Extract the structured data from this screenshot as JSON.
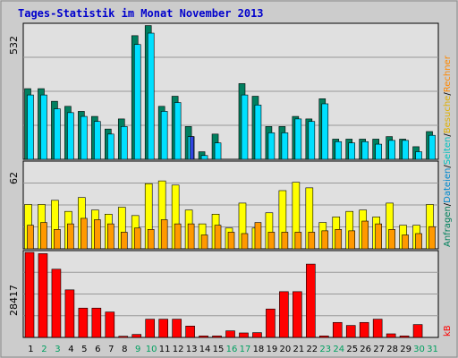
{
  "title": "Tages-Statistik im Monat November 2013",
  "colors": {
    "background": "#CCCCCC",
    "panel": "#E0E0E0",
    "title": "#0000CC",
    "hits": "#007F5F",
    "files": "#00E0FF",
    "pages": "#3344E0",
    "visits": "#FFFF00",
    "sites": "#FF9900",
    "kbytes": "#FF0000",
    "weekend_day": "#00A060",
    "weekday": "#000000"
  },
  "right_labels": {
    "top": [
      {
        "text": "Anfragen",
        "color": "#00805C"
      },
      {
        "text": "/",
        "color": "#000000"
      },
      {
        "text": "Dateien",
        "color": "#0088CC"
      },
      {
        "text": "/",
        "color": "#000000"
      },
      {
        "text": "Seiten",
        "color": "#00C0C0"
      },
      {
        "text": "/",
        "color": "#000000"
      },
      {
        "text": "Besuche",
        "color": "#E0B000"
      },
      {
        "text": "/",
        "color": "#000000"
      },
      {
        "text": "Rechner",
        "color": "#FF8800"
      }
    ],
    "bottom": [
      {
        "text": "kB",
        "color": "#FF0000"
      }
    ]
  },
  "chart_data": [
    {
      "type": "bar",
      "panel": "top",
      "ymax_label": "532",
      "ylim": [
        0,
        532
      ],
      "series": [
        {
          "name": "Anfragen",
          "values": [
            280,
            280,
            230,
            210,
            190,
            170,
            120,
            160,
            490,
            530,
            210,
            250,
            130,
            30,
            100,
            0,
            300,
            250,
            130,
            130,
            170,
            160,
            240,
            80,
            80,
            80,
            80,
            90,
            80,
            50,
            110
          ]
        },
        {
          "name": "Dateien",
          "values": [
            255,
            255,
            200,
            185,
            170,
            150,
            100,
            130,
            455,
            500,
            190,
            225,
            90,
            15,
            65,
            0,
            255,
            215,
            105,
            105,
            160,
            150,
            220,
            70,
            65,
            70,
            60,
            75,
            75,
            30,
            95
          ]
        },
        {
          "name": "Seiten",
          "values": [
            0,
            0,
            0,
            0,
            0,
            0,
            0,
            0,
            0,
            0,
            0,
            0,
            90,
            0,
            0,
            0,
            0,
            0,
            0,
            0,
            0,
            0,
            0,
            0,
            0,
            0,
            0,
            0,
            0,
            0,
            0
          ]
        }
      ]
    },
    {
      "type": "bar",
      "panel": "middle",
      "ymax_label": "62",
      "ylim": [
        0,
        62
      ],
      "series": [
        {
          "name": "Besuche",
          "values": [
            32,
            32,
            35,
            27,
            37,
            28,
            25,
            30,
            24,
            47,
            49,
            46,
            28,
            18,
            25,
            15,
            33,
            15,
            26,
            42,
            48,
            44,
            19,
            23,
            27,
            28,
            23,
            33,
            17,
            17,
            32
          ]
        },
        {
          "name": "Rechner",
          "values": [
            17,
            19,
            14,
            18,
            22,
            21,
            18,
            12,
            15,
            14,
            21,
            18,
            18,
            10,
            17,
            12,
            11,
            19,
            12,
            12,
            12,
            12,
            13,
            14,
            13,
            20,
            18,
            14,
            10,
            11,
            16
          ]
        }
      ]
    },
    {
      "type": "bar",
      "panel": "bottom",
      "ymax_label": "28417",
      "ylim": [
        0,
        28417
      ],
      "series": [
        {
          "name": "kB",
          "values": [
            28417,
            28000,
            22800,
            15900,
            9800,
            9800,
            8500,
            400,
            1000,
            6100,
            6100,
            6100,
            3800,
            500,
            500,
            2200,
            1500,
            1600,
            9500,
            15300,
            15300,
            24500,
            500,
            5000,
            4000,
            5000,
            6100,
            1200,
            500,
            4300,
            0
          ]
        }
      ]
    }
  ],
  "x_axis": {
    "days": [
      "1",
      "2",
      "3",
      "4",
      "5",
      "6",
      "7",
      "8",
      "9",
      "10",
      "11",
      "12",
      "13",
      "14",
      "15",
      "16",
      "17",
      "18",
      "19",
      "20",
      "21",
      "22",
      "23",
      "24",
      "25",
      "26",
      "27",
      "28",
      "29",
      "30",
      "31"
    ],
    "weekend_days": [
      "2",
      "3",
      "9",
      "10",
      "16",
      "17",
      "23",
      "24",
      "30",
      "31"
    ]
  }
}
